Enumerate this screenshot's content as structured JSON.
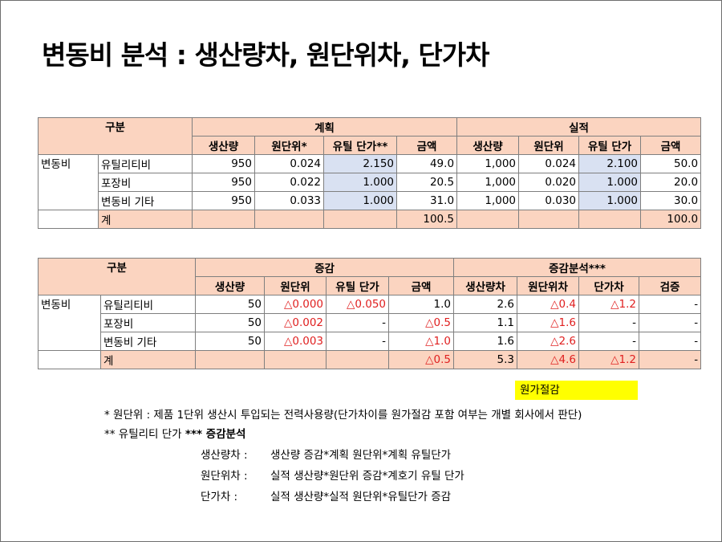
{
  "title": "변동비 분석 : 생산량차, 원단위차, 단가차",
  "table1": {
    "h_gubun": "구분",
    "h_plan": "계획",
    "h_actual": "실적",
    "sub_plan": [
      "생산량",
      "원단위*",
      "유틸 단가**",
      "금액"
    ],
    "sub_actual": [
      "생산량",
      "원단위",
      "유틸 단가",
      "금액"
    ],
    "category": "변동비",
    "rows": [
      {
        "item": "유틸리티비",
        "plan": [
          "950",
          "0.024",
          "2.150",
          "49.0"
        ],
        "actual": [
          "1,000",
          "0.024",
          "2.100",
          "50.0"
        ]
      },
      {
        "item": "포장비",
        "plan": [
          "950",
          "0.022",
          "1.000",
          "20.5"
        ],
        "actual": [
          "1,000",
          "0.020",
          "1.000",
          "20.0"
        ]
      },
      {
        "item": "변동비 기타",
        "plan": [
          "950",
          "0.033",
          "1.000",
          "31.0"
        ],
        "actual": [
          "1,000",
          "0.030",
          "1.000",
          "30.0"
        ]
      }
    ],
    "total_label": "계",
    "total_plan_amount": "100.5",
    "total_actual_amount": "100.0"
  },
  "table2": {
    "h_gubun": "구분",
    "h_change": "증감",
    "h_analysis": "증감분석***",
    "sub_change": [
      "생산량",
      "원단위",
      "유틸 단가",
      "금액"
    ],
    "sub_analysis": [
      "생산량차",
      "원단위차",
      "단가차",
      "검증"
    ],
    "category": "변동비",
    "rows": [
      {
        "item": "유틸리티비",
        "change": [
          "50",
          "△0.000",
          "△0.050",
          "1.0"
        ],
        "analysis": [
          "2.6",
          "△0.4",
          "△1.2",
          "-"
        ]
      },
      {
        "item": "포장비",
        "change": [
          "50",
          "△0.002",
          "-",
          "△0.5"
        ],
        "analysis": [
          "1.1",
          "△1.6",
          "-",
          "-"
        ]
      },
      {
        "item": "변동비 기타",
        "change": [
          "50",
          "△0.003",
          "-",
          "△1.0"
        ],
        "analysis": [
          "1.6",
          "△2.6",
          "-",
          "-"
        ]
      }
    ],
    "total_label": "계",
    "total_amount": "△0.5",
    "total_analysis": [
      "5.3",
      "△4.6",
      "△1.2",
      "-"
    ]
  },
  "highlight_label": "원가절감",
  "notes": {
    "n1": "* 원단위 : 제품 1단위 생산시 투입되는 전력사용량(단가차이를 원가절감 포함 여부는 개별 회사에서 판단)",
    "n2_prefix": "** 유틸리티 단가",
    "n2_bold": "*** 증감분석",
    "f1_label": "생산량차 :",
    "f1_text": "생산량 증감*계획 원단위*계획 유틸단가",
    "f2_label": "원단위차 :",
    "f2_text": "실적 생산량*원단위 증감*계호기 유틸 단가",
    "f3_label": "단가차 :",
    "f3_text": "실적 생산량*실적 원단위*유틸단가 증감"
  }
}
